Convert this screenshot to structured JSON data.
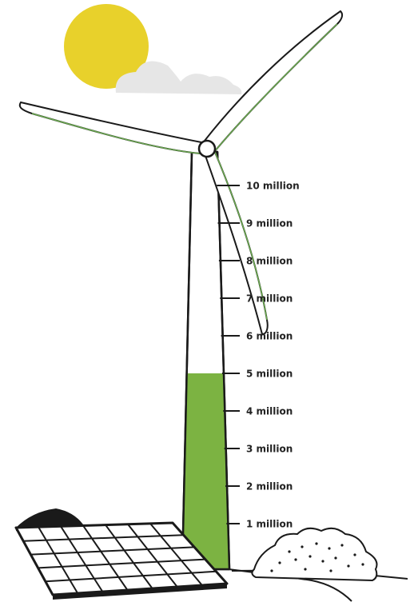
{
  "gauge": {
    "ticks": [
      {
        "value": 1000000,
        "label": "1 million"
      },
      {
        "value": 2000000,
        "label": "2 million"
      },
      {
        "value": 3000000,
        "label": "3 million"
      },
      {
        "value": 4000000,
        "label": "4 million"
      },
      {
        "value": 5000000,
        "label": "5 million"
      },
      {
        "value": 6000000,
        "label": "6 million"
      },
      {
        "value": 7000000,
        "label": "7 million"
      },
      {
        "value": 8000000,
        "label": "8 million"
      },
      {
        "value": 9000000,
        "label": "9 million"
      },
      {
        "value": 10000000,
        "label": "10 million"
      }
    ],
    "fill_value": 5000000,
    "max_value": 10000000,
    "fill_color": "#7cb342"
  },
  "colors": {
    "sun": "#e8d12b",
    "cloud": "#e6e6e6",
    "outline": "#1a1a1a",
    "blade_edge": "#6aa84f",
    "solar_panel": "#ffffff",
    "ground_mound": "#1a1a1a"
  },
  "icons": [
    "sun-icon",
    "cloud-icon",
    "wind-turbine-icon",
    "solar-panel-icon",
    "bush-icon"
  ]
}
